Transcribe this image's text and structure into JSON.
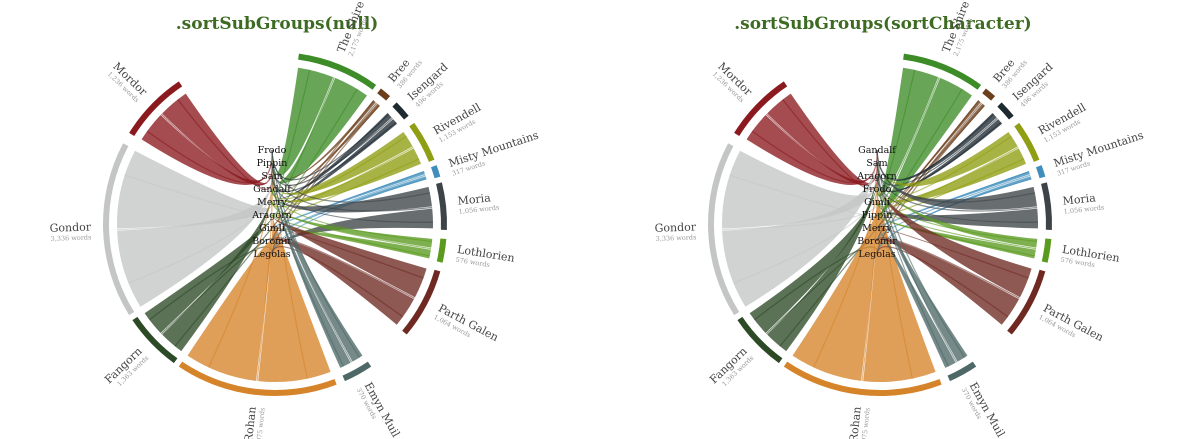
{
  "panels": [
    {
      "title": ".sortSubGroups(null)",
      "characters": [
        "Frodo",
        "Pippin",
        "Sam",
        "Gandalf",
        "Merry",
        "Aragorn",
        "Gimli",
        "Boromir",
        "Legolas"
      ]
    },
    {
      "title": ".sortSubGroups(sortCharacter)",
      "characters": [
        "Gandalf",
        "Sam",
        "Aragorn",
        "Frodo",
        "Gimli",
        "Pippin",
        "Merry",
        "Boromir",
        "Legolas"
      ]
    }
  ],
  "locations": [
    {
      "name": "Mordor",
      "words": "1,236 words",
      "color": "#8b1a1f"
    },
    {
      "name": "Gondor",
      "words": "3,336 words",
      "color": "#c4c6c5"
    },
    {
      "name": "Fangorn",
      "words": "1,363 words",
      "color": "#2d4a26"
    },
    {
      "name": "Rohan",
      "words": "3,075 words",
      "color": "#d6842a"
    },
    {
      "name": "The Shire",
      "words": "2,175 words",
      "color": "#3d8c28"
    },
    {
      "name": "Bree",
      "words": "386 words",
      "color": "#6b3f1c"
    },
    {
      "name": "Isengard",
      "words": "496 words",
      "color": "#1e2a32"
    },
    {
      "name": "Rivendell",
      "words": "1,153 words",
      "color": "#8f9e12"
    },
    {
      "name": "Misty Mountains",
      "words": "317 words",
      "color": "#3f8ebb"
    },
    {
      "name": "Moria",
      "words": "1,056 words",
      "color": "#3d4448"
    },
    {
      "name": "Lothlorien",
      "words": "576 words",
      "color": "#5a9a1f"
    },
    {
      "name": "Parth Galen",
      "words": "1,064 words",
      "color": "#6e2a22"
    },
    {
      "name": "Emyn Muil",
      "words": "370 words",
      "color": "#4d6866"
    }
  ]
}
